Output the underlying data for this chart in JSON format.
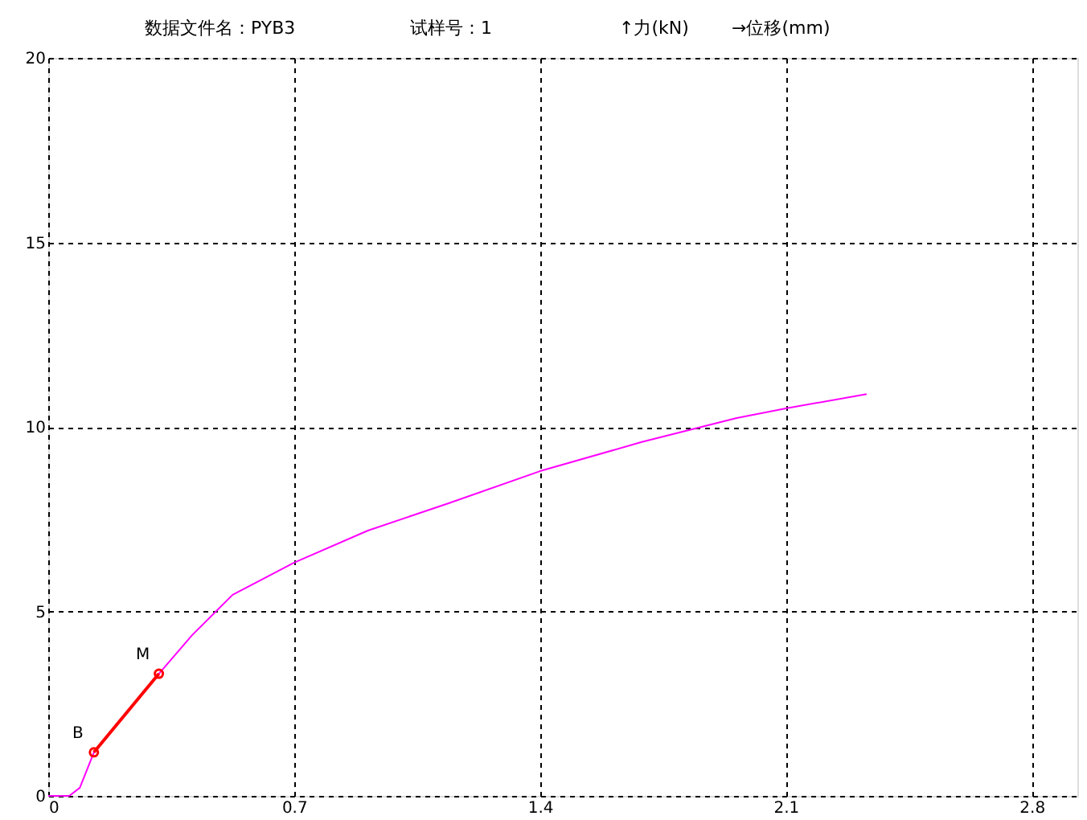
{
  "chart_data": {
    "type": "line",
    "annotations": [
      "数据文件名：PYB3",
      "试样号：1",
      "↑力(kN)",
      "→位移(mm)",
      {
        "text": "B",
        "x": 0.13,
        "y": 1.18
      },
      {
        "text": "M",
        "x": 0.315,
        "y": 3.31
      }
    ],
    "series": [
      {
        "color": "#ff00ff",
        "marker": "none",
        "x": [
          0,
          0.06,
          0.09,
          0.13,
          0.315,
          0.41,
          0.525,
          0.7,
          0.91,
          1.14,
          1.4,
          1.69,
          1.96,
          2.1,
          2.33
        ],
        "values": [
          0,
          0,
          0.22,
          1.18,
          3.31,
          4.36,
          5.45,
          6.32,
          7.19,
          7.93,
          8.8,
          9.59,
          10.24,
          10.5,
          10.89
        ]
      },
      {
        "color": "#ff0000",
        "marker": "circle",
        "x": [
          0.13,
          0.315
        ],
        "values": [
          1.18,
          3.31
        ]
      }
    ],
    "xlim": [
      0,
      2.93
    ],
    "ylim": [
      0,
      20
    ],
    "xticks": [
      0,
      0.7,
      1.4,
      2.1,
      2.8
    ],
    "yticks": [
      0,
      5,
      10,
      15,
      20
    ],
    "grid": true,
    "line_style": "solid"
  }
}
